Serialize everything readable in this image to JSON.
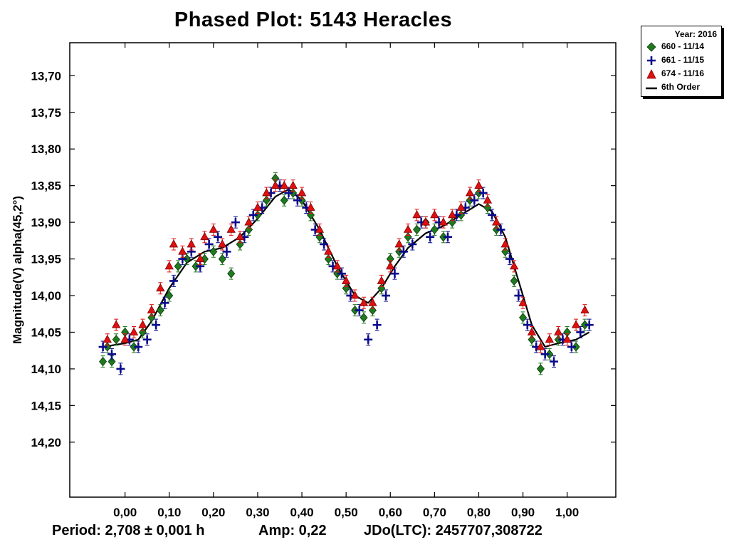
{
  "chart_data": {
    "type": "scatter",
    "title": "Phased Plot: 5143 Heracles",
    "xlabel": "",
    "ylabel": "Magnitude(V) alpha(45,2°)",
    "xlim": [
      -0.125,
      1.11
    ],
    "ylim": [
      13.655,
      14.275
    ],
    "y_inverted": true,
    "x_ticks": [
      0.0,
      0.1,
      0.2,
      0.3,
      0.4,
      0.5,
      0.6,
      0.7,
      0.8,
      0.9,
      1.0
    ],
    "x_tick_labels": [
      "0,00",
      "0,10",
      "0,20",
      "0,30",
      "0,40",
      "0,50",
      "0,60",
      "0,70",
      "0,80",
      "0,90",
      "1,00"
    ],
    "y_ticks": [
      13.7,
      13.75,
      13.8,
      13.85,
      13.9,
      13.95,
      14.0,
      14.05,
      14.1,
      14.15,
      14.2
    ],
    "y_tick_labels": [
      "13,70",
      "13,75",
      "13,80",
      "13,85",
      "13,90",
      "13,95",
      "14,00",
      "14,05",
      "14,10",
      "14,15",
      "14,20"
    ],
    "grid": false,
    "legend_position": "top-right (outside plot)",
    "legend_title": "Year: 2016",
    "series": [
      {
        "name": "660 - 11/14",
        "marker": "diamond",
        "color": "#1f7a1f",
        "points": [
          [
            -0.05,
            14.09
          ],
          [
            -0.04,
            14.07
          ],
          [
            -0.03,
            14.09
          ],
          [
            -0.02,
            14.06
          ],
          [
            0.0,
            14.05
          ],
          [
            0.02,
            14.07
          ],
          [
            0.04,
            14.05
          ],
          [
            0.06,
            14.03
          ],
          [
            0.08,
            14.02
          ],
          [
            0.1,
            14.0
          ],
          [
            0.12,
            13.96
          ],
          [
            0.14,
            13.95
          ],
          [
            0.16,
            13.96
          ],
          [
            0.18,
            13.95
          ],
          [
            0.2,
            13.94
          ],
          [
            0.22,
            13.95
          ],
          [
            0.24,
            13.97
          ],
          [
            0.26,
            13.93
          ],
          [
            0.28,
            13.91
          ],
          [
            0.3,
            13.89
          ],
          [
            0.32,
            13.87
          ],
          [
            0.34,
            13.84
          ],
          [
            0.36,
            13.87
          ],
          [
            0.38,
            13.86
          ],
          [
            0.4,
            13.87
          ],
          [
            0.42,
            13.89
          ],
          [
            0.44,
            13.92
          ],
          [
            0.46,
            13.95
          ],
          [
            0.48,
            13.97
          ],
          [
            0.5,
            13.99
          ],
          [
            0.52,
            14.02
          ],
          [
            0.54,
            14.03
          ],
          [
            0.56,
            14.02
          ],
          [
            0.58,
            13.99
          ],
          [
            0.6,
            13.95
          ],
          [
            0.62,
            13.94
          ],
          [
            0.64,
            13.92
          ],
          [
            0.66,
            13.91
          ],
          [
            0.68,
            13.9
          ],
          [
            0.7,
            13.91
          ],
          [
            0.72,
            13.92
          ],
          [
            0.74,
            13.9
          ],
          [
            0.76,
            13.89
          ],
          [
            0.78,
            13.87
          ],
          [
            0.8,
            13.86
          ],
          [
            0.82,
            13.88
          ],
          [
            0.84,
            13.91
          ],
          [
            0.86,
            13.94
          ],
          [
            0.88,
            13.98
          ],
          [
            0.9,
            14.03
          ],
          [
            0.92,
            14.06
          ],
          [
            0.94,
            14.1
          ],
          [
            0.96,
            14.08
          ],
          [
            0.98,
            14.06
          ],
          [
            1.0,
            14.05
          ],
          [
            1.02,
            14.07
          ],
          [
            1.04,
            14.04
          ]
        ]
      },
      {
        "name": "661 - 11/15",
        "marker": "plus",
        "color": "#0a0a8c",
        "points": [
          [
            -0.05,
            14.07
          ],
          [
            -0.03,
            14.08
          ],
          [
            -0.01,
            14.1
          ],
          [
            0.01,
            14.06
          ],
          [
            0.03,
            14.07
          ],
          [
            0.05,
            14.06
          ],
          [
            0.07,
            14.04
          ],
          [
            0.09,
            14.01
          ],
          [
            0.11,
            13.98
          ],
          [
            0.13,
            13.95
          ],
          [
            0.15,
            13.94
          ],
          [
            0.17,
            13.96
          ],
          [
            0.19,
            13.93
          ],
          [
            0.21,
            13.92
          ],
          [
            0.23,
            13.94
          ],
          [
            0.25,
            13.9
          ],
          [
            0.27,
            13.92
          ],
          [
            0.29,
            13.89
          ],
          [
            0.31,
            13.88
          ],
          [
            0.33,
            13.86
          ],
          [
            0.35,
            13.85
          ],
          [
            0.37,
            13.86
          ],
          [
            0.39,
            13.87
          ],
          [
            0.41,
            13.88
          ],
          [
            0.43,
            13.91
          ],
          [
            0.45,
            13.93
          ],
          [
            0.47,
            13.96
          ],
          [
            0.49,
            13.97
          ],
          [
            0.51,
            14.0
          ],
          [
            0.53,
            14.02
          ],
          [
            0.55,
            14.06
          ],
          [
            0.57,
            14.04
          ],
          [
            0.59,
            14.0
          ],
          [
            0.61,
            13.97
          ],
          [
            0.63,
            13.94
          ],
          [
            0.65,
            13.93
          ],
          [
            0.67,
            13.9
          ],
          [
            0.69,
            13.92
          ],
          [
            0.71,
            13.9
          ],
          [
            0.73,
            13.92
          ],
          [
            0.75,
            13.89
          ],
          [
            0.77,
            13.88
          ],
          [
            0.79,
            13.87
          ],
          [
            0.81,
            13.86
          ],
          [
            0.83,
            13.89
          ],
          [
            0.85,
            13.91
          ],
          [
            0.87,
            13.95
          ],
          [
            0.89,
            14.0
          ],
          [
            0.91,
            14.04
          ],
          [
            0.93,
            14.07
          ],
          [
            0.95,
            14.08
          ],
          [
            0.97,
            14.09
          ],
          [
            0.99,
            14.06
          ],
          [
            1.01,
            14.07
          ],
          [
            1.03,
            14.05
          ],
          [
            1.05,
            14.04
          ]
        ]
      },
      {
        "name": "674 - 11/16",
        "marker": "triangle",
        "color": "#e01010",
        "points": [
          [
            -0.04,
            14.06
          ],
          [
            -0.02,
            14.04
          ],
          [
            0.0,
            14.06
          ],
          [
            0.02,
            14.05
          ],
          [
            0.04,
            14.04
          ],
          [
            0.06,
            14.02
          ],
          [
            0.08,
            13.99
          ],
          [
            0.1,
            13.96
          ],
          [
            0.11,
            13.93
          ],
          [
            0.13,
            13.94
          ],
          [
            0.15,
            13.93
          ],
          [
            0.17,
            13.95
          ],
          [
            0.18,
            13.92
          ],
          [
            0.2,
            13.91
          ],
          [
            0.22,
            13.93
          ],
          [
            0.24,
            13.91
          ],
          [
            0.26,
            13.92
          ],
          [
            0.28,
            13.9
          ],
          [
            0.3,
            13.88
          ],
          [
            0.32,
            13.86
          ],
          [
            0.34,
            13.85
          ],
          [
            0.36,
            13.85
          ],
          [
            0.38,
            13.85
          ],
          [
            0.4,
            13.86
          ],
          [
            0.42,
            13.88
          ],
          [
            0.44,
            13.91
          ],
          [
            0.46,
            13.94
          ],
          [
            0.48,
            13.96
          ],
          [
            0.5,
            13.98
          ],
          [
            0.52,
            14.0
          ],
          [
            0.54,
            14.01
          ],
          [
            0.56,
            14.01
          ],
          [
            0.58,
            13.98
          ],
          [
            0.6,
            13.96
          ],
          [
            0.62,
            13.93
          ],
          [
            0.64,
            13.91
          ],
          [
            0.66,
            13.89
          ],
          [
            0.68,
            13.9
          ],
          [
            0.7,
            13.89
          ],
          [
            0.72,
            13.9
          ],
          [
            0.74,
            13.89
          ],
          [
            0.76,
            13.88
          ],
          [
            0.78,
            13.86
          ],
          [
            0.8,
            13.85
          ],
          [
            0.82,
            13.87
          ],
          [
            0.84,
            13.9
          ],
          [
            0.86,
            13.93
          ],
          [
            0.88,
            13.96
          ],
          [
            0.9,
            14.01
          ],
          [
            0.92,
            14.05
          ],
          [
            0.94,
            14.07
          ],
          [
            0.96,
            14.06
          ],
          [
            0.98,
            14.05
          ],
          [
            1.0,
            14.06
          ],
          [
            1.02,
            14.04
          ],
          [
            1.04,
            14.02
          ]
        ]
      },
      {
        "name": "6th Order",
        "marker": "line",
        "color": "#000000",
        "points": [
          [
            -0.05,
            14.07
          ],
          [
            0.0,
            14.065
          ],
          [
            0.03,
            14.06
          ],
          [
            0.06,
            14.035
          ],
          [
            0.1,
            13.99
          ],
          [
            0.14,
            13.955
          ],
          [
            0.18,
            13.94
          ],
          [
            0.22,
            13.935
          ],
          [
            0.26,
            13.92
          ],
          [
            0.3,
            13.895
          ],
          [
            0.34,
            13.865
          ],
          [
            0.37,
            13.855
          ],
          [
            0.4,
            13.87
          ],
          [
            0.44,
            13.91
          ],
          [
            0.48,
            13.96
          ],
          [
            0.52,
            14.0
          ],
          [
            0.55,
            14.01
          ],
          [
            0.58,
            13.99
          ],
          [
            0.61,
            13.96
          ],
          [
            0.64,
            13.935
          ],
          [
            0.68,
            13.915
          ],
          [
            0.72,
            13.905
          ],
          [
            0.76,
            13.89
          ],
          [
            0.8,
            13.875
          ],
          [
            0.83,
            13.885
          ],
          [
            0.86,
            13.92
          ],
          [
            0.89,
            13.98
          ],
          [
            0.92,
            14.04
          ],
          [
            0.95,
            14.07
          ],
          [
            0.98,
            14.065
          ],
          [
            1.02,
            14.06
          ],
          [
            1.05,
            14.05
          ]
        ]
      }
    ]
  },
  "footer": {
    "period": "Period: 2,708 ± 0,001 h",
    "amp": "Amp: 0,22",
    "jdo": "JDo(LTC): 2457707,308722"
  }
}
